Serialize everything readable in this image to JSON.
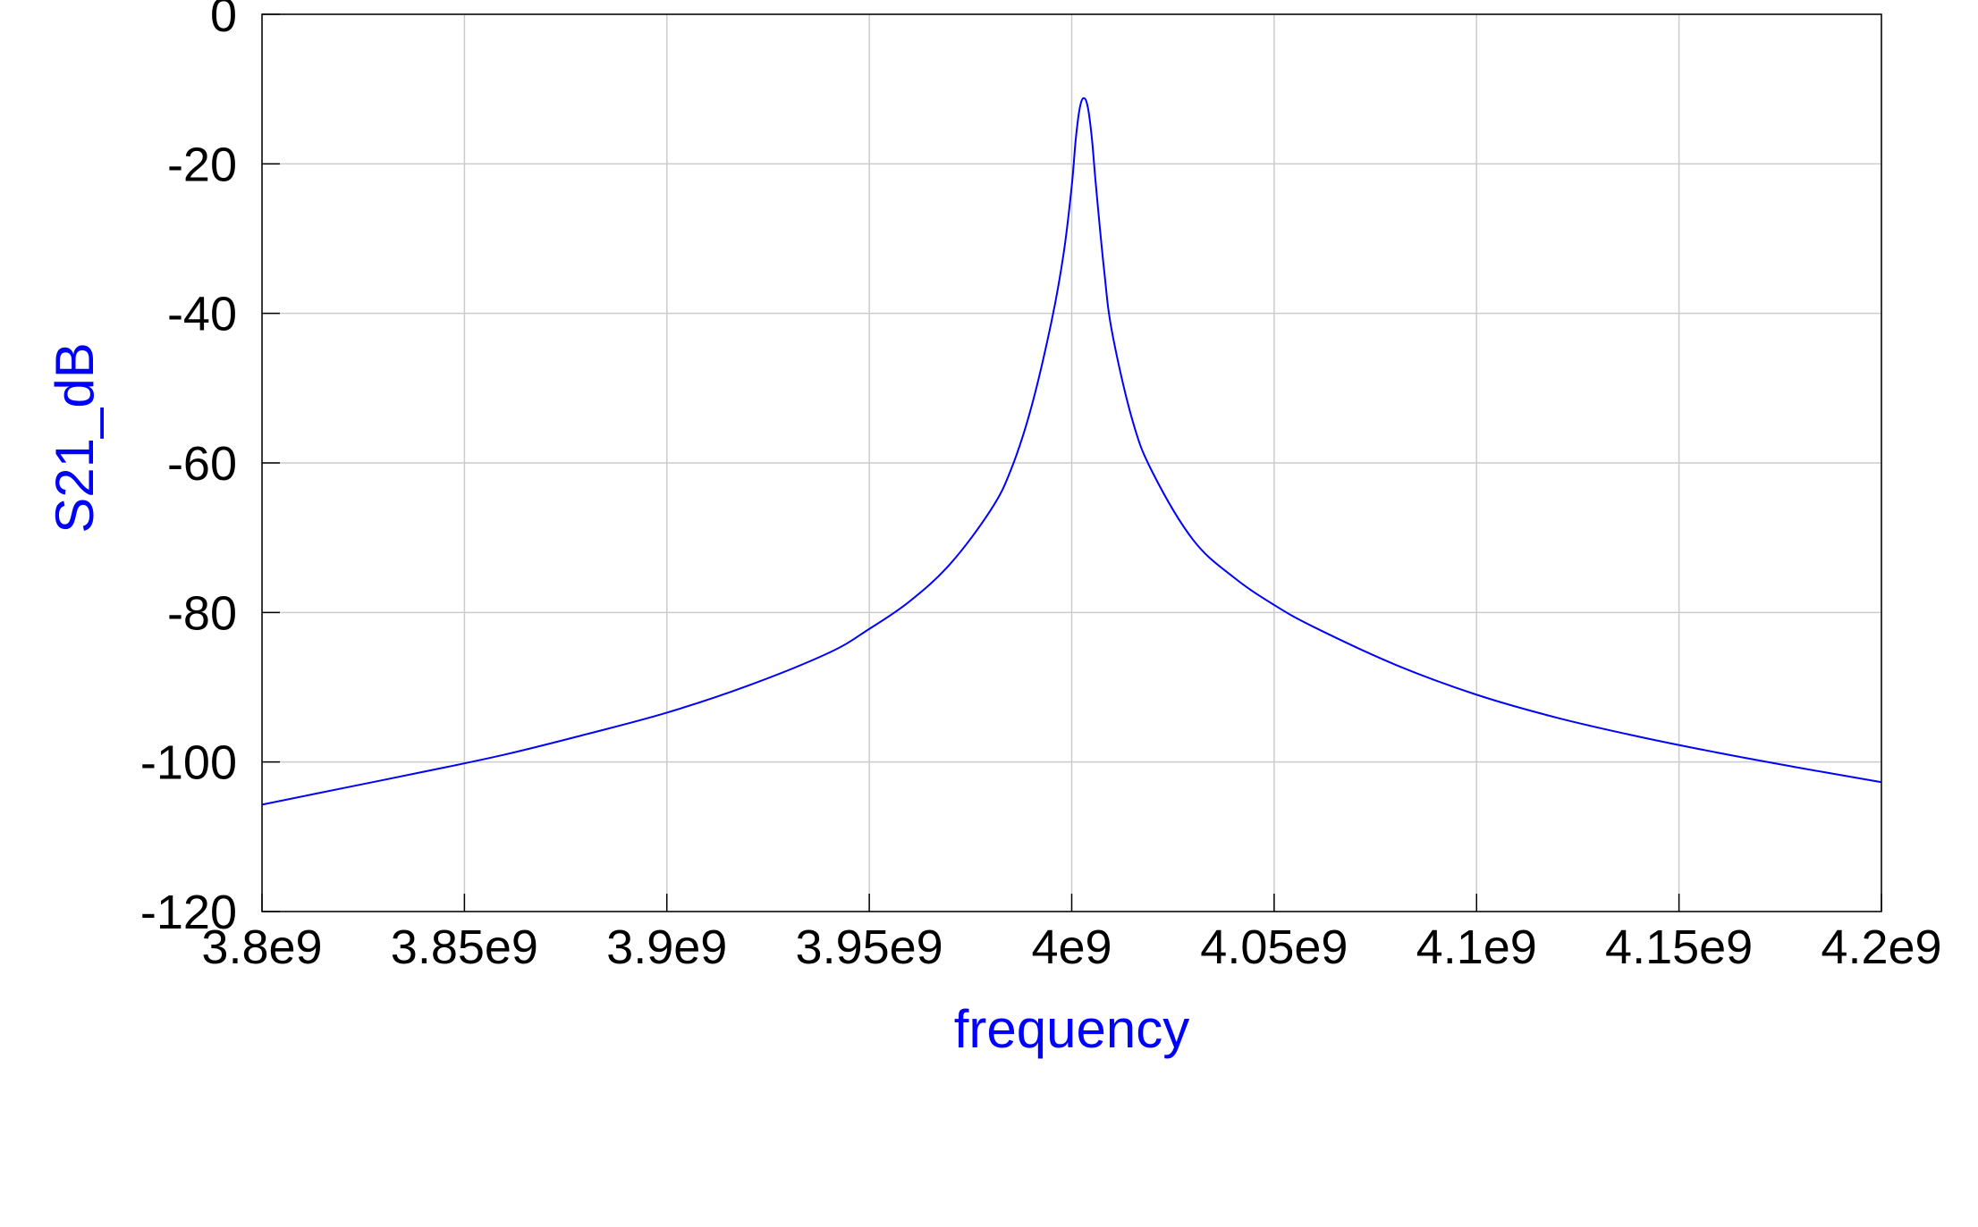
{
  "chart_data": {
    "type": "line",
    "title": "",
    "xlabel": "frequency",
    "ylabel": "S21_dB",
    "xlim": [
      3800000000.0,
      4200000000.0
    ],
    "ylim": [
      -120,
      0
    ],
    "grid": true,
    "legend": "none",
    "x_tick_values": [
      3800000000.0,
      3850000000.0,
      3900000000.0,
      3950000000.0,
      4000000000.0,
      4050000000.0,
      4100000000.0,
      4150000000.0,
      4200000000.0
    ],
    "x_tick_labels": [
      "3.8e9",
      "3.85e9",
      "3.9e9",
      "3.95e9",
      "4e9",
      "4.05e9",
      "4.1e9",
      "4.15e9",
      "4.2e9"
    ],
    "y_tick_values": [
      0,
      -20,
      -40,
      -60,
      -80,
      -100,
      -120
    ],
    "y_tick_labels": [
      "0",
      "-20",
      "-40",
      "-60",
      "-80",
      "-100",
      "-120"
    ],
    "series": [
      {
        "color": "#0000ff",
        "x": [
          3800000000.0,
          3820000000.0,
          3840000000.0,
          3860000000.0,
          3880000000.0,
          3900000000.0,
          3920000000.0,
          3940000000.0,
          3950000000.0,
          3960000000.0,
          3970000000.0,
          3980000000.0,
          3985000000.0,
          3990000000.0,
          3995000000.0,
          3998000000.0,
          4000000000.0,
          4001000000.0,
          4002000000.0,
          4003000000.0,
          4004000000.0,
          4005000000.0,
          4006000000.0,
          4008000000.0,
          4010000000.0,
          4015000000.0,
          4020000000.0,
          4030000000.0,
          4040000000.0,
          4050000000.0,
          4060000000.0,
          4080000000.0,
          4100000000.0,
          4120000000.0,
          4140000000.0,
          4160000000.0,
          4180000000.0,
          4200000000.0
        ],
        "y": [
          -105.7,
          -103.5,
          -101.3,
          -99.0,
          -96.3,
          -93.4,
          -89.8,
          -85.4,
          -82.2,
          -78.5,
          -73.5,
          -66.3,
          -60.9,
          -52.6,
          -41.1,
          -32.0,
          -23.0,
          -16.7,
          -12.5,
          -11.2,
          -12.5,
          -16.7,
          -23.0,
          -34.2,
          -42.6,
          -54.3,
          -61.3,
          -70.3,
          -75.3,
          -79.0,
          -82.0,
          -87.0,
          -91.0,
          -94.1,
          -96.6,
          -98.8,
          -100.8,
          -102.7
        ]
      }
    ]
  }
}
